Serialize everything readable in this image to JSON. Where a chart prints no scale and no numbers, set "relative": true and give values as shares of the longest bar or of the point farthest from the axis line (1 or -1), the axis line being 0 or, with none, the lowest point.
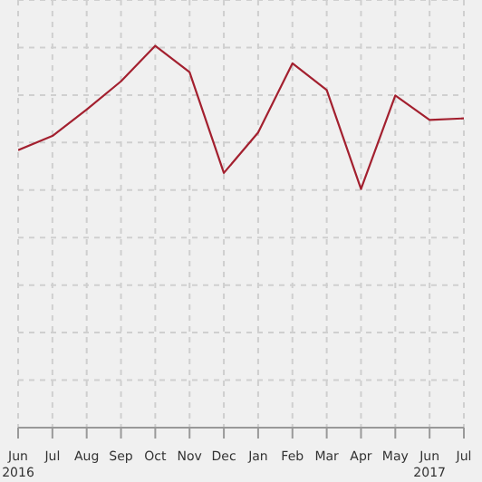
{
  "chart_data": {
    "type": "line",
    "relative": true,
    "categories": [
      "Jun\n2016",
      "Jul",
      "Aug",
      "Sep",
      "Oct",
      "Nov",
      "Dec",
      "Jan",
      "Feb",
      "Mar",
      "Apr",
      "May",
      "Jun\n2017",
      "Jul"
    ],
    "series": [
      {
        "color": "#a3202f",
        "values": [
          0.727,
          0.764,
          0.833,
          0.907,
          1,
          0.931,
          0.667,
          0.773,
          0.954,
          0.884,
          0.625,
          0.87,
          0.806,
          0.81
        ]
      }
    ],
    "grid": true,
    "marker": "none",
    "line_style": "solid"
  }
}
